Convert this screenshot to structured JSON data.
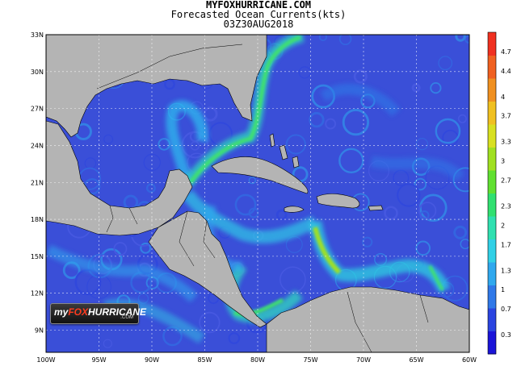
{
  "header": {
    "site": "MYFOXHURRICANE.COM",
    "product": "Forecasted Ocean Currents(kts)",
    "valid_time": "03Z30AUG2018"
  },
  "map": {
    "lat_labels": [
      "33N",
      "30N",
      "27N",
      "24N",
      "21N",
      "18N",
      "15N",
      "12N",
      "9N"
    ],
    "lon_labels": [
      "100W",
      "95W",
      "90W",
      "85W",
      "80W",
      "75W",
      "70W",
      "65W",
      "60W"
    ],
    "land_color": "#b4b4b4",
    "ocean_base_color": "#3a4fd8"
  },
  "colorbar": {
    "labels": [
      "0.3",
      "0.7",
      "1",
      "1.3",
      "1.7",
      "2",
      "2.3",
      "2.7",
      "3",
      "3.3",
      "3.7",
      "4",
      "4.4",
      "4.7"
    ],
    "colors": [
      "#1a14d8",
      "#2a44e0",
      "#2f78e8",
      "#2fa8ee",
      "#30d0e6",
      "#2fe0b0",
      "#30e070",
      "#60e030",
      "#a0e020",
      "#d8e020",
      "#f0c020",
      "#f09020",
      "#f06020",
      "#f03020"
    ]
  },
  "logo": {
    "prefix": "my",
    "brand": "FOX",
    "suffix": "HURRICANE",
    "domain": ".COM"
  }
}
